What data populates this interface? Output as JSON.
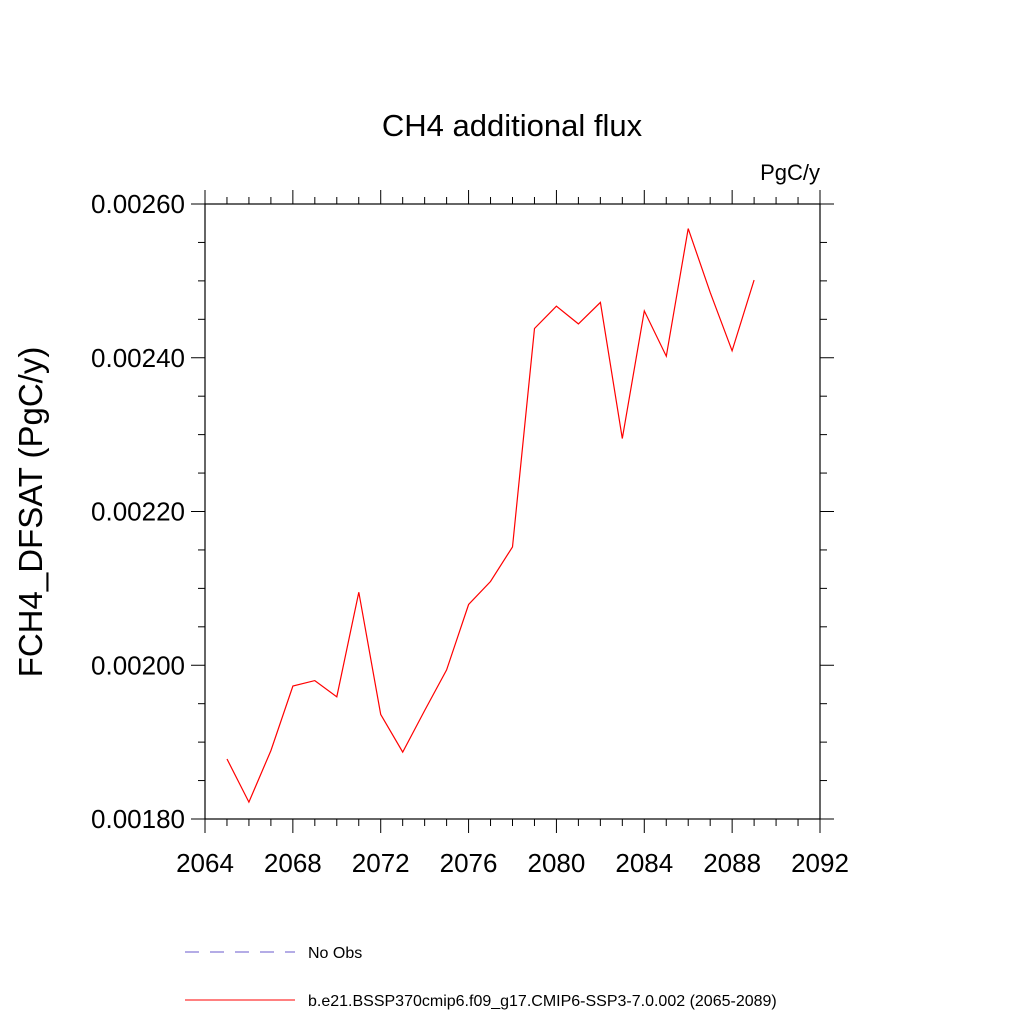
{
  "chart_data": {
    "type": "line",
    "title": "CH4 additional flux",
    "units": "PgC/y",
    "ylabel": "FCH4_DFSAT  (PgC/y)",
    "xlabel": "",
    "xlim": [
      2064,
      2092
    ],
    "ylim": [
      0.0018,
      0.0026
    ],
    "xticks": [
      "2064",
      "2068",
      "2072",
      "2076",
      "2080",
      "2084",
      "2088",
      "2092"
    ],
    "yticks": [
      "0.00180",
      "0.00200",
      "0.00220",
      "0.00240",
      "0.00260"
    ],
    "grid": false,
    "legend_position": "bottom",
    "legend": [
      {
        "label": "No Obs",
        "color": "#6a5acd",
        "style": "dashed"
      },
      {
        "label": "b.e21.BSSP370cmip6.f09_g17.CMIP6-SSP3-7.0.002 (2065-2089)",
        "color": "#ff0000",
        "style": "solid"
      }
    ],
    "series": [
      {
        "name": "b.e21.BSSP370cmip6.f09_g17.CMIP6-SSP3-7.0.002 (2065-2089)",
        "color": "#ff0000",
        "x": [
          2065,
          2066,
          2067,
          2068,
          2069,
          2070,
          2071,
          2072,
          2073,
          2074,
          2075,
          2076,
          2077,
          2078,
          2079,
          2080,
          2081,
          2082,
          2083,
          2084,
          2085,
          2086,
          2087,
          2088,
          2089
        ],
        "y": [
          0.001878,
          0.001822,
          0.001889,
          0.001973,
          0.00198,
          0.001959,
          0.002095,
          0.001936,
          0.001887,
          0.001941,
          0.001994,
          0.002079,
          0.002109,
          0.002154,
          0.002438,
          0.002467,
          0.002444,
          0.002472,
          0.002295,
          0.002461,
          0.002402,
          0.002568,
          0.002485,
          0.002409,
          0.002501
        ]
      }
    ]
  }
}
